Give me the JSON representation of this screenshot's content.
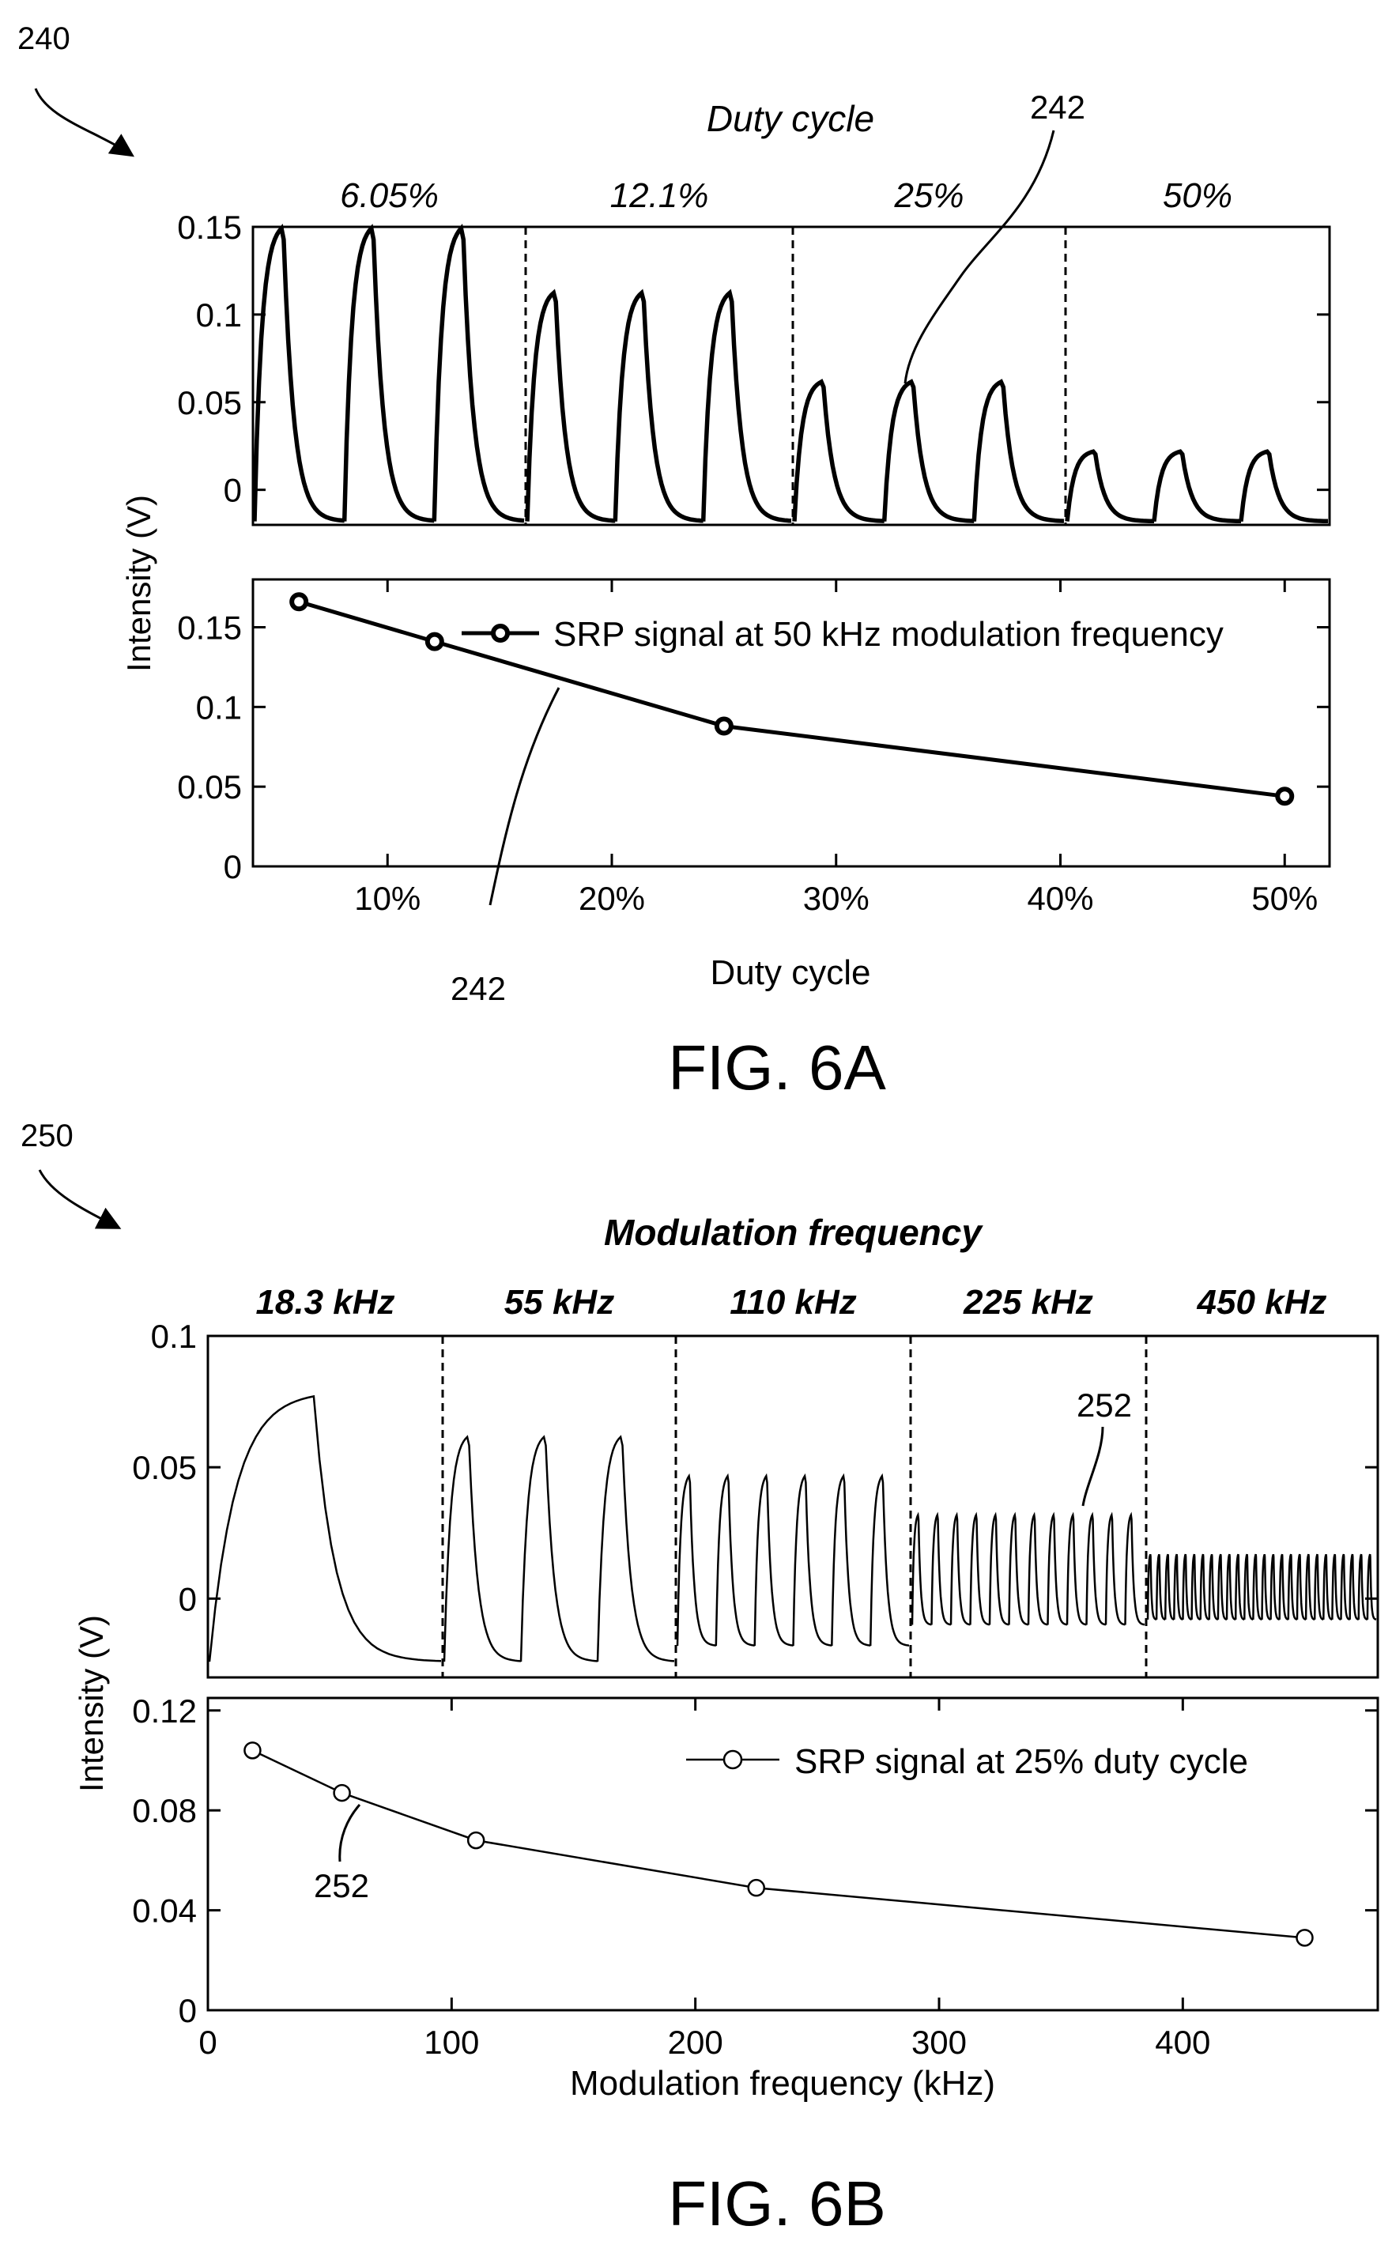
{
  "fig_a": {
    "ref": "240",
    "caption": "FIG. 6A",
    "top_title": "Duty cycle",
    "segment_labels": [
      "6.05%",
      "12.1%",
      "25%",
      "50%"
    ],
    "callout": "242",
    "callout_bottom": "242",
    "ylabel": "Intensity (V)",
    "xlabel": "Duty cycle",
    "legend": "SRP signal at 50 kHz modulation frequency"
  },
  "fig_b": {
    "ref": "250",
    "caption": "FIG. 6B",
    "top_title": "Modulation frequency",
    "segment_labels": [
      "18.3 kHz",
      "55 kHz",
      "110 kHz",
      "225 kHz",
      "450 kHz"
    ],
    "callout": "252",
    "callout_bottom": "252",
    "ylabel": "Intensity (V)",
    "xlabel": "Modulation frequency (kHz)",
    "legend": "SRP signal at 25% duty cycle"
  },
  "chart_data": [
    {
      "id": "fig6a-waveform",
      "type": "line",
      "ylim": [
        -0.02,
        0.15
      ],
      "yticks": [
        0,
        0.05,
        0.1,
        0.15
      ],
      "ytick_labels": [
        "0",
        "0.05",
        "0.1",
        "0.15"
      ],
      "segments": [
        {
          "label": "6.05%",
          "peak": 0.15,
          "baseline": -0.018,
          "pulses": 3
        },
        {
          "label": "12.1%",
          "peak": 0.113,
          "baseline": -0.018,
          "pulses": 3
        },
        {
          "label": "25%",
          "peak": 0.062,
          "baseline": -0.018,
          "pulses": 3
        },
        {
          "label": "50%",
          "peak": 0.022,
          "baseline": -0.018,
          "pulses": 3
        }
      ]
    },
    {
      "id": "fig6a-trend",
      "type": "line",
      "x": [
        6.05,
        12.1,
        25,
        50
      ],
      "y": [
        0.166,
        0.141,
        0.088,
        0.044
      ],
      "xlim": [
        4,
        52
      ],
      "ylim": [
        0,
        0.18
      ],
      "xticks": [
        10,
        20,
        30,
        40,
        50
      ],
      "xtick_labels": [
        "10%",
        "20%",
        "30%",
        "40%",
        "50%"
      ],
      "yticks": [
        0,
        0.05,
        0.1,
        0.15
      ],
      "ytick_labels": [
        "0",
        "0.05",
        "0.1",
        "0.15"
      ],
      "series": [
        {
          "name": "SRP signal at 50 kHz modulation frequency",
          "x": [
            6.05,
            12.1,
            25,
            50
          ],
          "y": [
            0.166,
            0.141,
            0.088,
            0.044
          ]
        }
      ]
    },
    {
      "id": "fig6b-waveform",
      "type": "line",
      "ylim": [
        -0.03,
        0.1
      ],
      "yticks": [
        0,
        0.05,
        0.1
      ],
      "ytick_labels": [
        "0",
        "0.05",
        "0.1"
      ],
      "segments": [
        {
          "label": "18.3 kHz",
          "peak": 0.077,
          "baseline": -0.024,
          "pulses": 1
        },
        {
          "label": "55 kHz",
          "peak": 0.062,
          "baseline": -0.024,
          "pulses": 3
        },
        {
          "label": "110 kHz",
          "peak": 0.047,
          "baseline": -0.018,
          "pulses": 6
        },
        {
          "label": "225 kHz",
          "peak": 0.032,
          "baseline": -0.01,
          "pulses": 12
        },
        {
          "label": "450 kHz",
          "peak": 0.017,
          "baseline": -0.008,
          "pulses": 26
        }
      ]
    },
    {
      "id": "fig6b-trend",
      "type": "line",
      "x": [
        18.3,
        55,
        110,
        225,
        450
      ],
      "y": [
        0.104,
        0.087,
        0.068,
        0.049,
        0.029
      ],
      "xlim": [
        0,
        480
      ],
      "ylim": [
        0,
        0.125
      ],
      "xticks": [
        0,
        100,
        200,
        300,
        400
      ],
      "xtick_labels": [
        "0",
        "100",
        "200",
        "300",
        "400"
      ],
      "yticks": [
        0,
        0.04,
        0.08,
        0.12
      ],
      "ytick_labels": [
        "0",
        "0.04",
        "0.08",
        "0.12"
      ],
      "series": [
        {
          "name": "SRP signal at 25% duty cycle",
          "x": [
            18.3,
            55,
            110,
            225,
            450
          ],
          "y": [
            0.104,
            0.087,
            0.068,
            0.049,
            0.029
          ]
        }
      ]
    }
  ]
}
